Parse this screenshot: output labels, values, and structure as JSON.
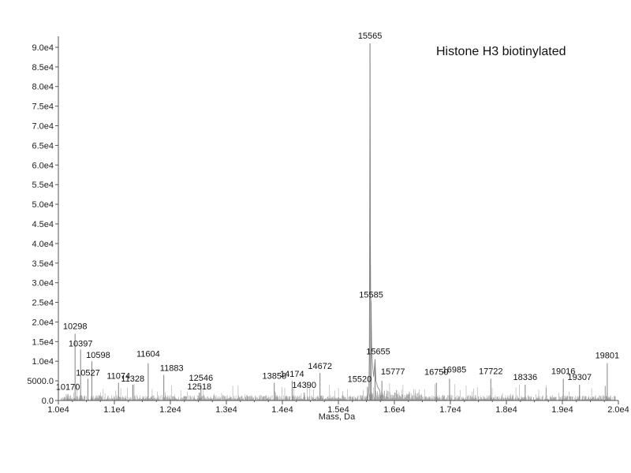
{
  "chart_data": {
    "type": "line",
    "title": "Histone H3 biotinylated",
    "xlabel": "Mass, Da",
    "ylabel": "",
    "xlim": [
      10000,
      20000
    ],
    "ylim": [
      0,
      92000
    ],
    "grid": false,
    "x_ticks": [
      {
        "value": 10000,
        "label": "1.0e4"
      },
      {
        "value": 11000,
        "label": "1.1e4"
      },
      {
        "value": 12000,
        "label": "1.2e4"
      },
      {
        "value": 13000,
        "label": "1.3e4"
      },
      {
        "value": 14000,
        "label": "1.4e4"
      },
      {
        "value": 15000,
        "label": "1.5e4"
      },
      {
        "value": 16000,
        "label": "1.6e4"
      },
      {
        "value": 17000,
        "label": "1.7e4"
      },
      {
        "value": 18000,
        "label": "1.8e4"
      },
      {
        "value": 19000,
        "label": "1.9e4"
      },
      {
        "value": 20000,
        "label": "2.0e4"
      }
    ],
    "y_ticks": [
      {
        "value": 0,
        "label": "0.0"
      },
      {
        "value": 5000,
        "label": "5000.0"
      },
      {
        "value": 10000,
        "label": "1.0e4"
      },
      {
        "value": 15000,
        "label": "1.5e4"
      },
      {
        "value": 20000,
        "label": "2.0e4"
      },
      {
        "value": 25000,
        "label": "2.5e4"
      },
      {
        "value": 30000,
        "label": "3.0e4"
      },
      {
        "value": 35000,
        "label": "3.5e4"
      },
      {
        "value": 40000,
        "label": "4.0e4"
      },
      {
        "value": 45000,
        "label": "4.5e4"
      },
      {
        "value": 50000,
        "label": "5.0e4"
      },
      {
        "value": 55000,
        "label": "5.5e4"
      },
      {
        "value": 60000,
        "label": "6.0e4"
      },
      {
        "value": 65000,
        "label": "6.5e4"
      },
      {
        "value": 70000,
        "label": "7.0e4"
      },
      {
        "value": 75000,
        "label": "7.5e4"
      },
      {
        "value": 80000,
        "label": "8.0e4"
      },
      {
        "value": 85000,
        "label": "8.5e4"
      },
      {
        "value": 90000,
        "label": "9.0e4"
      }
    ],
    "peaks": [
      {
        "mass": 10170,
        "intensity": 1500,
        "label": "10170"
      },
      {
        "mass": 10298,
        "intensity": 17000,
        "label": "10298"
      },
      {
        "mass": 10397,
        "intensity": 13000,
        "label": "10397"
      },
      {
        "mass": 10527,
        "intensity": 5500,
        "label": "10527"
      },
      {
        "mass": 10598,
        "intensity": 10000,
        "label": "10598"
      },
      {
        "mass": 11074,
        "intensity": 4500,
        "label": "11074"
      },
      {
        "mass": 11328,
        "intensity": 4000,
        "label": "11328"
      },
      {
        "mass": 11604,
        "intensity": 9500,
        "label": "11604"
      },
      {
        "mass": 11883,
        "intensity": 6500,
        "label": "11883"
      },
      {
        "mass": 12518,
        "intensity": 2000,
        "label": "12518"
      },
      {
        "mass": 12546,
        "intensity": 4000,
        "label": "12546"
      },
      {
        "mass": 13856,
        "intensity": 4500,
        "label": "13856"
      },
      {
        "mass": 14174,
        "intensity": 5000,
        "label": "14174"
      },
      {
        "mass": 14390,
        "intensity": 2000,
        "label": "14390"
      },
      {
        "mass": 14672,
        "intensity": 7000,
        "label": "14672"
      },
      {
        "mass": 15520,
        "intensity": 3500,
        "label": "15520"
      },
      {
        "mass": 15565,
        "intensity": 91000,
        "label": "15565"
      },
      {
        "mass": 15585,
        "intensity": 25000,
        "label": "15585"
      },
      {
        "mass": 15655,
        "intensity": 10500,
        "label": "15655"
      },
      {
        "mass": 15777,
        "intensity": 5000,
        "label": "15777"
      },
      {
        "mass": 16750,
        "intensity": 4500,
        "label": "16750"
      },
      {
        "mass": 16985,
        "intensity": 5500,
        "label": "16985"
      },
      {
        "mass": 17722,
        "intensity": 5500,
        "label": "17722"
      },
      {
        "mass": 18336,
        "intensity": 4000,
        "label": "18336"
      },
      {
        "mass": 19016,
        "intensity": 5500,
        "label": "19016"
      },
      {
        "mass": 19307,
        "intensity": 4000,
        "label": "19307"
      },
      {
        "mass": 19801,
        "intensity": 9500,
        "label": "19801"
      }
    ],
    "colors": {
      "axis": "#555555",
      "trace": "#808080",
      "text": "#111111"
    }
  }
}
